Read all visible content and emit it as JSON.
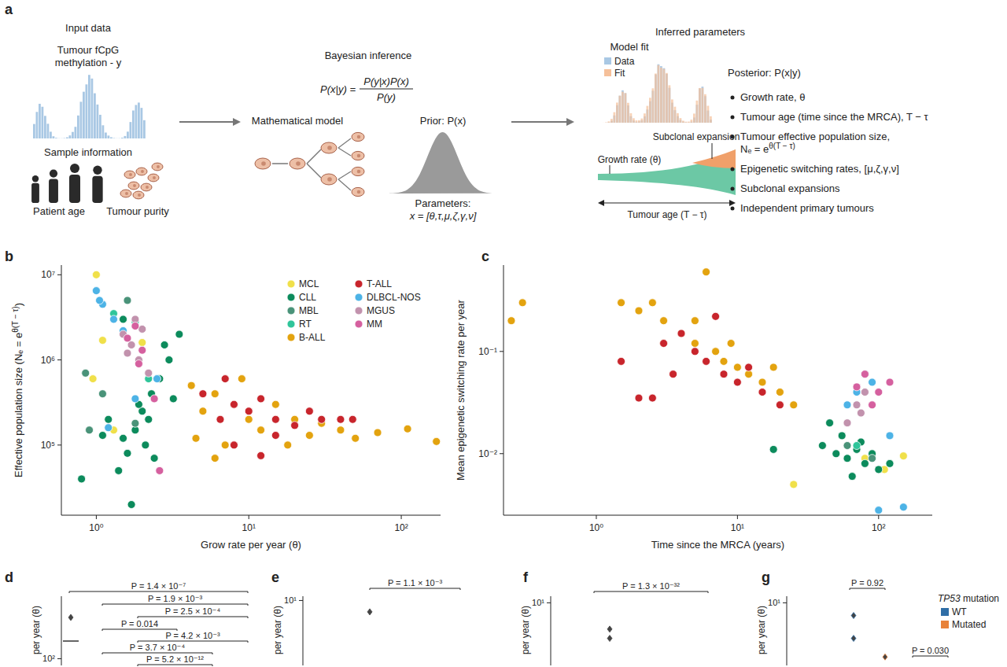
{
  "diagram": {
    "panel": "a",
    "input": {
      "title": "Input data",
      "methylation": [
        "Tumour fCpG",
        "methylation - y"
      ],
      "sample_info": "Sample information",
      "captions": [
        "Patient age",
        "Tumour purity"
      ]
    },
    "inference": {
      "title": "Bayesian inference",
      "formula": {
        "lhs": "P(x|y) =",
        "numerator": "P(y|x)P(x)",
        "denominator": "P(y)"
      },
      "model": "Mathematical model",
      "prior": "Prior: P(x)",
      "params": [
        "Parameters:",
        "x = [θ,τ,μ,ζ,γ,ν]"
      ]
    },
    "output": {
      "title": "Inferred parameters",
      "fit_title": "Model fit",
      "fit_legend": [
        "Data",
        "Fit"
      ],
      "subclonal": "Subclonal expansion",
      "growth": "Growth rate (θ)",
      "age": "Tumour age (T − τ)",
      "posterior": "Posterior: P(x|y)",
      "bullets": [
        [
          "Growth rate, θ"
        ],
        [
          "Tumour age (time since the MRCA), T − τ"
        ],
        [
          "Tumour effective population size,",
          {
            "base": "Nₑ = e",
            "sup": "θ(T − τ)"
          }
        ],
        [
          "Epigenetic switching rates, [μ,ζ,γ,ν]"
        ],
        [
          "Subclonal expansions"
        ],
        [
          "Independent primary tumours"
        ]
      ]
    }
  },
  "chart_data": [
    {
      "panel": "b",
      "type": "scatter",
      "log": true,
      "marker": "circle",
      "legend": "top-right",
      "x_label": "Grow rate per year (θ)",
      "y_label": {
        "base": "Effective population size (Nₑ = e",
        "sup": "θ(T − τ)",
        "tail": ")"
      },
      "xlim": [
        0.59,
        181
      ],
      "ylim": [
        15000,
        13000000
      ],
      "xticks": [
        {
          "value": 1,
          "label": "10⁰"
        },
        {
          "value": 10,
          "label": "10¹"
        },
        {
          "value": 100,
          "label": "10²"
        }
      ],
      "yticks": [
        {
          "value": 100000,
          "label": "10⁵"
        },
        {
          "value": 1000000,
          "label": "10⁶"
        },
        {
          "value": 10000000,
          "label": "10⁷"
        }
      ],
      "series": [
        {
          "name": "MCL",
          "color": "#f0e04a",
          "x": [
            1.0,
            1.1,
            0.95,
            1.3,
            2.0
          ],
          "values": [
            10000000,
            1700000,
            600000,
            150000,
            1600000
          ]
        },
        {
          "name": "CLL",
          "color": "#0c8b5c",
          "x": [
            1.5,
            1.8,
            2.0,
            2.3,
            1.6,
            2.6,
            3.0,
            1.4,
            2.1,
            1.9,
            2.8,
            1.7,
            1.2,
            3.5,
            0.8,
            2.4,
            1.1,
            2.2,
            3.2,
            1.5
          ],
          "values": [
            120000,
            150000,
            250000,
            400000,
            80000,
            600000,
            1000000,
            50000,
            100000,
            300000,
            1500000,
            20000,
            200000,
            2000000,
            40000,
            70000,
            130000,
            200000,
            350000,
            3000000
          ]
        },
        {
          "name": "MBL",
          "color": "#4a9379",
          "x": [
            0.9,
            1.1,
            1.6,
            1.8,
            0.85
          ],
          "values": [
            150000,
            400000,
            5000000,
            180000,
            700000
          ]
        },
        {
          "name": "RT",
          "color": "#2fc59a",
          "x": [
            1.3,
            1.8,
            2.2
          ],
          "values": [
            3500000,
            2800000,
            600000
          ]
        },
        {
          "name": "B-ALL",
          "color": "#e3a30f",
          "x": [
            4.5,
            5,
            6,
            7,
            8,
            10,
            12,
            15,
            20,
            25,
            30,
            40,
            50,
            70,
            110,
            170,
            6,
            9,
            4.2,
            18
          ],
          "values": [
            120000,
            250000,
            400000,
            100000,
            300000,
            200000,
            150000,
            300000,
            200000,
            130000,
            180000,
            150000,
            120000,
            140000,
            155000,
            110000,
            70000,
            600000,
            500000,
            100000
          ]
        },
        {
          "name": "T-ALL",
          "color": "#c8252c",
          "x": [
            5,
            7,
            8,
            10,
            12,
            15,
            20,
            25,
            30,
            40,
            48,
            8,
            12,
            15,
            6.5
          ],
          "values": [
            400000,
            600000,
            300000,
            250000,
            350000,
            200000,
            170000,
            250000,
            200000,
            200000,
            200000,
            100000,
            75000,
            130000,
            200000
          ]
        },
        {
          "name": "DLBCL-NOS",
          "color": "#4db3e6",
          "x": [
            1.0,
            1.1,
            1.3,
            1.5,
            2.5,
            1.2,
            1.8,
            1.05
          ],
          "values": [
            6500000,
            4500000,
            3000000,
            2200000,
            600000,
            160000,
            350000,
            5000000
          ]
        },
        {
          "name": "MGUS",
          "color": "#c292ad",
          "x": [
            1.5,
            1.7,
            1.9,
            2.0,
            1.6,
            2.2,
            1.8
          ],
          "values": [
            2000000,
            1500000,
            1000000,
            2300000,
            1200000,
            700000,
            3000000
          ]
        },
        {
          "name": "MM",
          "color": "#d5609f",
          "x": [
            1.6,
            2.0,
            1.8,
            2.4,
            2.6,
            1.9
          ],
          "values": [
            1800000,
            1300000,
            2500000,
            350000,
            50000,
            900000
          ]
        }
      ]
    },
    {
      "panel": "c",
      "type": "scatter",
      "log": true,
      "marker": "circle",
      "x_label": "Time since the MRCA (years)",
      "y_label": "Mean epigenetic switching rate per year",
      "xlim": [
        0.22,
        240
      ],
      "ylim": [
        0.0025,
        0.7
      ],
      "xticks": [
        {
          "value": 1,
          "label": "10⁰"
        },
        {
          "value": 10,
          "label": "10¹"
        },
        {
          "value": 100,
          "label": "10²"
        }
      ],
      "yticks": [
        {
          "value": 0.01,
          "label": "10⁻²"
        },
        {
          "value": 0.1,
          "label": "10⁻¹"
        }
      ],
      "series": [
        {
          "name": "MCL",
          "color": "#f0e04a",
          "x": [
            80,
            150,
            25,
            110
          ],
          "values": [
            0.009,
            0.0095,
            0.005,
            0.007
          ]
        },
        {
          "name": "CLL",
          "color": "#0c8b5c",
          "x": [
            40,
            50,
            60,
            70,
            80,
            90,
            55,
            100,
            120,
            45,
            65,
            18,
            75
          ],
          "values": [
            0.012,
            0.01,
            0.009,
            0.011,
            0.008,
            0.01,
            0.015,
            0.007,
            0.008,
            0.02,
            0.006,
            0.011,
            0.013
          ]
        },
        {
          "name": "MBL",
          "color": "#4a9379",
          "x": [
            60,
            90
          ],
          "values": [
            0.012,
            0.009
          ]
        },
        {
          "name": "RT",
          "color": "#2fc59a",
          "x": [
            70
          ],
          "values": [
            0.012
          ]
        },
        {
          "name": "B-ALL",
          "color": "#e3a30f",
          "x": [
            0.25,
            0.3,
            1.5,
            2,
            3,
            4,
            5,
            6,
            7,
            8,
            10,
            12,
            15,
            20,
            25,
            3,
            5,
            9,
            2.5,
            18
          ],
          "values": [
            0.2,
            0.3,
            0.3,
            0.25,
            0.2,
            0.15,
            0.12,
            0.6,
            0.1,
            0.08,
            0.07,
            0.06,
            0.05,
            0.04,
            0.03,
            0.12,
            0.2,
            0.12,
            0.3,
            0.07
          ]
        },
        {
          "name": "T-ALL",
          "color": "#c8252c",
          "x": [
            1.5,
            2,
            2.5,
            3,
            4,
            5,
            6,
            8,
            10,
            12,
            15,
            20,
            3.5,
            7
          ],
          "values": [
            0.08,
            0.035,
            0.035,
            0.12,
            0.15,
            0.1,
            0.08,
            0.06,
            0.05,
            0.07,
            0.04,
            0.03,
            0.06,
            0.22
          ]
        },
        {
          "name": "DLBCL-NOS",
          "color": "#4db3e6",
          "x": [
            60,
            80,
            100,
            150,
            90,
            120,
            70
          ],
          "values": [
            0.03,
            0.06,
            0.0028,
            0.003,
            0.05,
            0.015,
            0.04
          ]
        },
        {
          "name": "MGUS",
          "color": "#c292ad",
          "x": [
            70,
            80,
            60,
            75
          ],
          "values": [
            0.03,
            0.04,
            0.02,
            0.025
          ]
        },
        {
          "name": "MM",
          "color": "#d5609f",
          "x": [
            80,
            100,
            120,
            90,
            70
          ],
          "values": [
            0.06,
            0.04,
            0.05,
            0.03,
            0.045
          ]
        }
      ]
    },
    {
      "panel": "d",
      "type": "box",
      "log": "y",
      "y_label": "per year (θ)",
      "ylim": [
        80,
        800
      ],
      "yticks": [
        {
          "value": 100,
          "label": "10²"
        }
      ],
      "medians": [
        180
      ],
      "outliers": [
        395
      ],
      "annotations": [
        "P = 1.4 × 10⁻⁷",
        "P = 1.9 × 10⁻³",
        "P = 2.5 × 10⁻⁴",
        "P = 0.014",
        "P = 4.2 × 10⁻³",
        "P = 3.7 × 10⁻⁴",
        "P = 5.2 × 10⁻¹²"
      ]
    },
    {
      "panel": "e",
      "type": "box",
      "log": "y",
      "y_label": "per year (θ)",
      "ylim": [
        1.2,
        11.5
      ],
      "yticks": [
        {
          "value": 10,
          "label": "10¹"
        }
      ],
      "outliers": [
        6.9
      ],
      "annotations": [
        "P = 1.1 × 10⁻³"
      ]
    },
    {
      "panel": "f",
      "type": "box",
      "log": "y",
      "y_label": "per year (θ)",
      "ylim": [
        1.2,
        12.5
      ],
      "yticks": [
        {
          "value": 10,
          "label": "10¹"
        }
      ],
      "outliers": [
        4.1,
        3.0
      ],
      "annotations": [
        "P = 1.3 × 10⁻³²"
      ]
    },
    {
      "panel": "g",
      "type": "box",
      "log": "y",
      "y_label": "per year (θ)",
      "ylim": [
        1.2,
        12.5
      ],
      "yticks": [
        {
          "value": 10,
          "label": "10¹"
        }
      ],
      "legend": "right",
      "legend_title": "TP53 mutation",
      "series": [
        {
          "name": "WT",
          "color": "#2f6ea6",
          "outliers": [
            6.5,
            3.0
          ]
        },
        {
          "name": "Mutated",
          "color": "#e8823a",
          "outliers": [
            1.6
          ]
        }
      ],
      "annotations": [
        "P = 0.92",
        "P = 0.030"
      ]
    }
  ]
}
